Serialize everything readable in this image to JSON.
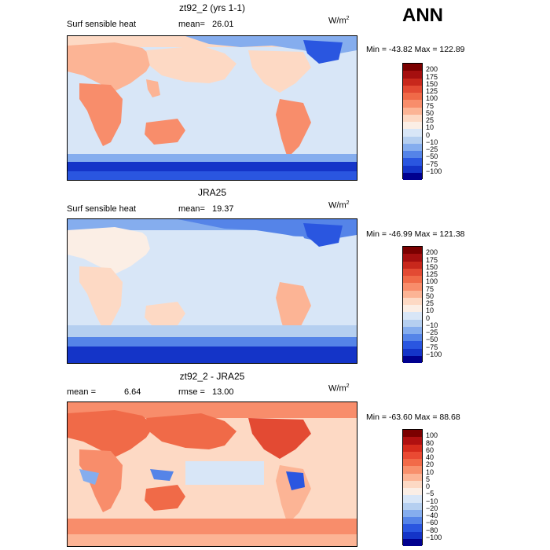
{
  "season": "ANN",
  "chart_data": [
    {
      "type": "heatmap",
      "title": "zt92_2 (yrs 1-1)",
      "variable": "Surf sensible heat",
      "mean_label": "mean=",
      "mean": "26.01",
      "units": "W/m",
      "units_exp": "2",
      "stats": "Min = -43.82 Max = 122.89",
      "min": -43.82,
      "max": 122.89,
      "colorbar_ticks": [
        "200",
        "175",
        "150",
        "125",
        "100",
        "75",
        "50",
        "25",
        "10",
        "0",
        "−10",
        "−25",
        "−50",
        "−75",
        "−100"
      ]
    },
    {
      "type": "heatmap",
      "title": "JRA25",
      "variable": "Surf sensible heat",
      "mean_label": "mean=",
      "mean": "19.37",
      "units": "W/m",
      "units_exp": "2",
      "stats": "Min = -46.99 Max = 121.38",
      "min": -46.99,
      "max": 121.38,
      "colorbar_ticks": [
        "200",
        "175",
        "150",
        "125",
        "100",
        "75",
        "50",
        "25",
        "10",
        "0",
        "−10",
        "−25",
        "−50",
        "−75",
        "−100"
      ]
    },
    {
      "type": "heatmap",
      "title": "zt92_2 - JRA25",
      "mean_label": "mean =",
      "mean": "6.64",
      "rmse_label": "rmse =",
      "rmse": "13.00",
      "units": "W/m",
      "units_exp": "2",
      "stats": "Min = -63.60 Max =  88.68",
      "min": -63.6,
      "max": 88.68,
      "colorbar_ticks": [
        "100",
        "80",
        "60",
        "40",
        "20",
        "10",
        "5",
        "0",
        "−5",
        "−10",
        "−20",
        "−40",
        "−60",
        "−80",
        "−100"
      ]
    }
  ],
  "colors": {
    "abs_scale": [
      "#7b0000",
      "#a50f0f",
      "#c8281c",
      "#e34a33",
      "#f06a48",
      "#f88d6b",
      "#fcb495",
      "#fdd9c4",
      "#fbeee5",
      "#d8e6f7",
      "#b5cff0",
      "#85adee",
      "#5584e8",
      "#2a56e0",
      "#1434c8",
      "#00008f"
    ],
    "diff_scale": [
      "#7b0000",
      "#b01010",
      "#d62b1c",
      "#ea4a33",
      "#f26a48",
      "#f8906c",
      "#fcb596",
      "#fdd9c4",
      "#fbeee5",
      "#d8e6f7",
      "#b5cff0",
      "#85adee",
      "#5584e8",
      "#2a56e0",
      "#1434c8",
      "#00008f"
    ]
  }
}
